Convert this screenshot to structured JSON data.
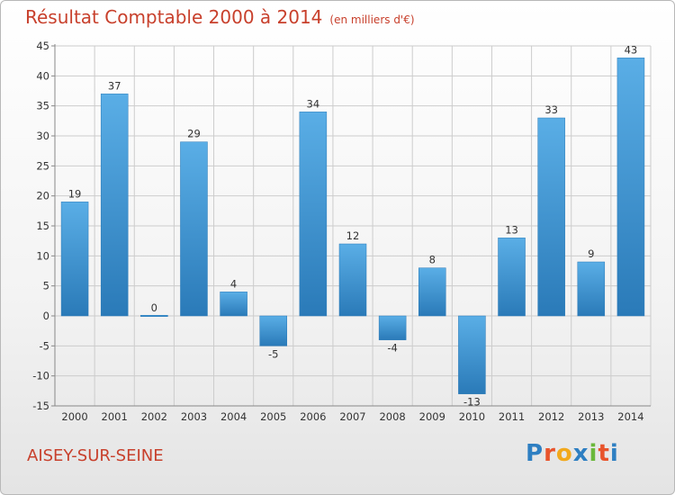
{
  "header": {
    "title": "Résultat Comptable 2000 à 2014",
    "unit": "(en milliers d'€)"
  },
  "footer": {
    "commune": "AISEY-SUR-SEINE",
    "logo": "Proxiti"
  },
  "colors": {
    "title": "#c8402c",
    "bar_light": "#5aaee6",
    "bar_dark": "#2a7ab8",
    "grid": "#cccccc",
    "axis": "#888888"
  },
  "chart_data": {
    "type": "bar",
    "title": "Résultat Comptable 2000 à 2014",
    "subtitle": "(en milliers d'€)",
    "xlabel": "",
    "ylabel": "",
    "categories": [
      "2000",
      "2001",
      "2002",
      "2003",
      "2004",
      "2005",
      "2006",
      "2007",
      "2008",
      "2009",
      "2010",
      "2011",
      "2012",
      "2013",
      "2014"
    ],
    "values": [
      19,
      37,
      0,
      29,
      4,
      -5,
      34,
      12,
      -4,
      8,
      -13,
      13,
      33,
      9,
      43
    ],
    "data_labels": [
      "19",
      "37",
      "0",
      "29",
      "4",
      "-5",
      "34",
      "12",
      "-4",
      "8",
      "-13",
      "13",
      "33",
      "9",
      "43"
    ],
    "ylim": [
      -15,
      45
    ],
    "yticks": [
      -15,
      -10,
      -5,
      0,
      5,
      10,
      15,
      20,
      25,
      30,
      35,
      40,
      45
    ],
    "ytick_labels": [
      "-15",
      "-10",
      "-5",
      "0",
      "5",
      "10",
      "15",
      "20",
      "25",
      "30",
      "35",
      "40",
      "45"
    ],
    "grid": true,
    "legend": "none"
  }
}
